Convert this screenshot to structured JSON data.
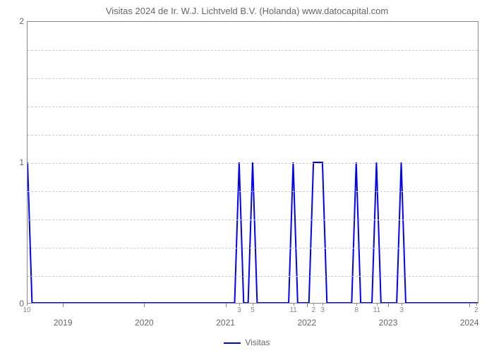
{
  "title": "Visitas 2024 de Ir. W.J. Lichtveld B.V. (Holanda) www.datocapital.com",
  "chart": {
    "type": "line",
    "background_color": "#ffffff",
    "border_color": "#888888",
    "grid_color": "#cccccc",
    "grid_style": "dashed",
    "line_color": "#0000ff",
    "line_width": 2,
    "ylim": [
      0,
      2
    ],
    "yticks": [
      0,
      1,
      2
    ],
    "grid_minor_count": 4,
    "x_range_pct": [
      0,
      100
    ],
    "x_major_ticks": [
      {
        "pct": 8,
        "label": "2019"
      },
      {
        "pct": 26,
        "label": "2020"
      },
      {
        "pct": 44,
        "label": "2021"
      },
      {
        "pct": 62,
        "label": "2022"
      },
      {
        "pct": 80,
        "label": "2023"
      },
      {
        "pct": 98,
        "label": "2024"
      }
    ],
    "x_minor_labels": [
      {
        "pct": 0,
        "label": "10"
      },
      {
        "pct": 47,
        "label": "3"
      },
      {
        "pct": 50,
        "label": "5"
      },
      {
        "pct": 59,
        "label": "11"
      },
      {
        "pct": 63.5,
        "label": "2"
      },
      {
        "pct": 65.5,
        "label": "3"
      },
      {
        "pct": 73,
        "label": "8"
      },
      {
        "pct": 77.5,
        "label": "11"
      },
      {
        "pct": 83,
        "label": "3"
      },
      {
        "pct": 99.5,
        "label": "2"
      }
    ],
    "points": [
      {
        "x": 0,
        "y": 1
      },
      {
        "x": 1,
        "y": 0
      },
      {
        "x": 46,
        "y": 0
      },
      {
        "x": 47,
        "y": 1
      },
      {
        "x": 48,
        "y": 0
      },
      {
        "x": 49,
        "y": 0
      },
      {
        "x": 50,
        "y": 1
      },
      {
        "x": 51,
        "y": 0
      },
      {
        "x": 58,
        "y": 0
      },
      {
        "x": 59,
        "y": 1
      },
      {
        "x": 60,
        "y": 0
      },
      {
        "x": 62.5,
        "y": 0
      },
      {
        "x": 63.5,
        "y": 1
      },
      {
        "x": 65.5,
        "y": 1
      },
      {
        "x": 66.5,
        "y": 0
      },
      {
        "x": 72,
        "y": 0
      },
      {
        "x": 73,
        "y": 1
      },
      {
        "x": 74,
        "y": 0
      },
      {
        "x": 76.5,
        "y": 0
      },
      {
        "x": 77.5,
        "y": 1
      },
      {
        "x": 78.5,
        "y": 0
      },
      {
        "x": 82,
        "y": 0
      },
      {
        "x": 83,
        "y": 1
      },
      {
        "x": 84,
        "y": 0
      },
      {
        "x": 100,
        "y": 0
      }
    ]
  },
  "legend": {
    "label": "Visitas",
    "color": "#0000ff"
  },
  "typography": {
    "title_fontsize": 13,
    "title_color": "#666666",
    "tick_fontsize": 12,
    "tick_color": "#666666",
    "minor_tick_fontsize": 10,
    "legend_fontsize": 12
  }
}
